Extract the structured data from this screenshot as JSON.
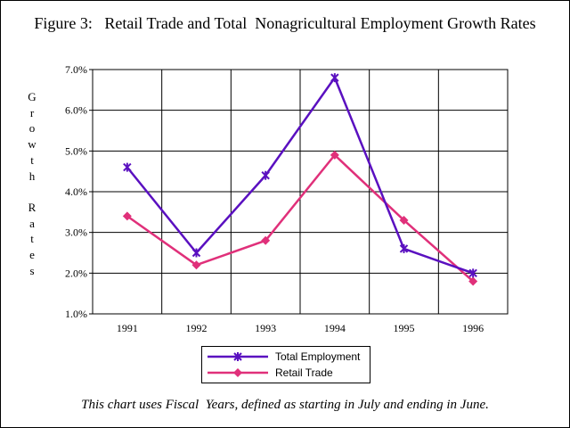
{
  "figure": {
    "title": "Figure 3:   Retail Trade and Total  Nonagricultural Employment Growth Rates",
    "note": "This chart uses Fiscal  Years, defined as starting in July and ending in June."
  },
  "chart_data": {
    "type": "line",
    "title": "Figure 3:   Retail Trade and Total  Nonagricultural Employment Growth Rates",
    "xlabel": "",
    "ylabel": "Growth Rates",
    "ylabel_chars": [
      "G",
      "r",
      "o",
      "w",
      "t",
      "h",
      "",
      "R",
      "a",
      "t",
      "e",
      "s"
    ],
    "categories": [
      "1991",
      "1992",
      "1993",
      "1994",
      "1995",
      "1996"
    ],
    "ylim": [
      1.0,
      7.0
    ],
    "yticks": [
      1.0,
      2.0,
      3.0,
      4.0,
      5.0,
      6.0,
      7.0
    ],
    "ytick_labels": [
      "1.0%",
      "2.0%",
      "3.0%",
      "4.0%",
      "5.0%",
      "6.0%",
      "7.0%"
    ],
    "grid": true,
    "legend_position": "bottom-center",
    "series": [
      {
        "name": "Total Employment",
        "color": "#5a10c0",
        "marker": "star",
        "values": [
          4.6,
          2.5,
          4.4,
          6.8,
          2.6,
          2.0
        ]
      },
      {
        "name": "Retail Trade",
        "color": "#e0307a",
        "marker": "diamond",
        "values": [
          3.4,
          2.2,
          2.8,
          4.9,
          3.3,
          1.8
        ]
      }
    ]
  }
}
